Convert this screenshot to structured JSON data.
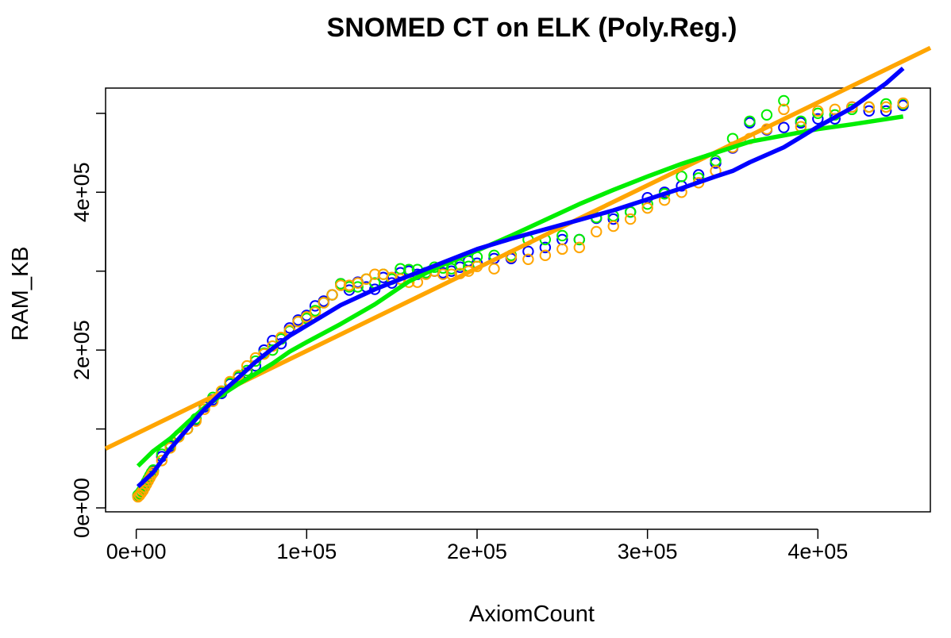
{
  "chart_data": {
    "type": "scatter",
    "title": "SNOMED CT on ELK (Poly.Reg.)",
    "xlabel": "AxiomCount",
    "ylabel": "RAM_KB",
    "xlim": [
      -18000,
      466000
    ],
    "ylim": [
      -5000,
      532000
    ],
    "xticks": [
      0,
      100000,
      200000,
      300000,
      400000
    ],
    "xtick_labels": [
      "0e+00",
      "1e+05",
      "2e+05",
      "3e+05",
      "4e+05"
    ],
    "yticks": [
      0,
      100000,
      200000,
      300000,
      400000,
      500000
    ],
    "ytick_labels": [
      "0e+00",
      "",
      "2e+05",
      "",
      "4e+05",
      ""
    ],
    "grid": false,
    "legend": "none",
    "point_series": [
      {
        "color": "#0000ff",
        "points": [
          [
            1000,
            15000
          ],
          [
            2000,
            17000
          ],
          [
            3000,
            20000
          ],
          [
            4000,
            24000
          ],
          [
            5000,
            28000
          ],
          [
            6000,
            32000
          ],
          [
            7000,
            36000
          ],
          [
            8000,
            40000
          ],
          [
            9000,
            44000
          ],
          [
            10000,
            47000
          ],
          [
            15000,
            65000
          ],
          [
            20000,
            78000
          ],
          [
            25000,
            92000
          ],
          [
            30000,
            100000
          ],
          [
            35000,
            112000
          ],
          [
            40000,
            128000
          ],
          [
            45000,
            137000
          ],
          [
            50000,
            145000
          ],
          [
            55000,
            157000
          ],
          [
            60000,
            165000
          ],
          [
            65000,
            171000
          ],
          [
            70000,
            180000
          ],
          [
            75000,
            200000
          ],
          [
            80000,
            212000
          ],
          [
            85000,
            208000
          ],
          [
            90000,
            228000
          ],
          [
            95000,
            238000
          ],
          [
            100000,
            244000
          ],
          [
            105000,
            256000
          ],
          [
            110000,
            262000
          ],
          [
            115000,
            270000
          ],
          [
            120000,
            284000
          ],
          [
            125000,
            276000
          ],
          [
            130000,
            286000
          ],
          [
            135000,
            280000
          ],
          [
            140000,
            277000
          ],
          [
            145000,
            292000
          ],
          [
            150000,
            285000
          ],
          [
            155000,
            298000
          ],
          [
            160000,
            300000
          ],
          [
            165000,
            296000
          ],
          [
            170000,
            298000
          ],
          [
            175000,
            300000
          ],
          [
            180000,
            298000
          ],
          [
            185000,
            300000
          ],
          [
            190000,
            305000
          ],
          [
            195000,
            313000
          ],
          [
            200000,
            310000
          ],
          [
            210000,
            316000
          ],
          [
            220000,
            316000
          ],
          [
            230000,
            325000
          ],
          [
            240000,
            330000
          ],
          [
            250000,
            340000
          ],
          [
            260000,
            340000
          ],
          [
            270000,
            367000
          ],
          [
            280000,
            366000
          ],
          [
            290000,
            375000
          ],
          [
            300000,
            393000
          ],
          [
            310000,
            400000
          ],
          [
            320000,
            408000
          ],
          [
            330000,
            422000
          ],
          [
            340000,
            437000
          ],
          [
            350000,
            456000
          ],
          [
            360000,
            488000
          ],
          [
            370000,
            479000
          ],
          [
            380000,
            482000
          ],
          [
            390000,
            488000
          ],
          [
            400000,
            493000
          ],
          [
            410000,
            493000
          ],
          [
            420000,
            508000
          ],
          [
            430000,
            503000
          ],
          [
            440000,
            503000
          ],
          [
            450000,
            510000
          ]
        ]
      },
      {
        "color": "#00ee00",
        "points": [
          [
            1000,
            16000
          ],
          [
            2000,
            18000
          ],
          [
            3000,
            21000
          ],
          [
            4000,
            25000
          ],
          [
            5000,
            29000
          ],
          [
            6000,
            33000
          ],
          [
            7000,
            37000
          ],
          [
            8000,
            41000
          ],
          [
            9000,
            45000
          ],
          [
            10000,
            48000
          ],
          [
            15000,
            68000
          ],
          [
            20000,
            80000
          ],
          [
            25000,
            92000
          ],
          [
            30000,
            100000
          ],
          [
            35000,
            113000
          ],
          [
            40000,
            130000
          ],
          [
            45000,
            140000
          ],
          [
            50000,
            147000
          ],
          [
            55000,
            158000
          ],
          [
            60000,
            166000
          ],
          [
            65000,
            174000
          ],
          [
            70000,
            186000
          ],
          [
            75000,
            196000
          ],
          [
            80000,
            200000
          ],
          [
            85000,
            214000
          ],
          [
            90000,
            224000
          ],
          [
            95000,
            236000
          ],
          [
            100000,
            240000
          ],
          [
            105000,
            250000
          ],
          [
            110000,
            260000
          ],
          [
            115000,
            270000
          ],
          [
            120000,
            284000
          ],
          [
            125000,
            280000
          ],
          [
            130000,
            280000
          ],
          [
            135000,
            290000
          ],
          [
            140000,
            285000
          ],
          [
            145000,
            296000
          ],
          [
            150000,
            290000
          ],
          [
            155000,
            303000
          ],
          [
            160000,
            302000
          ],
          [
            165000,
            302000
          ],
          [
            170000,
            298000
          ],
          [
            175000,
            305000
          ],
          [
            180000,
            304000
          ],
          [
            185000,
            303000
          ],
          [
            190000,
            308000
          ],
          [
            195000,
            306000
          ],
          [
            200000,
            318000
          ],
          [
            210000,
            320000
          ],
          [
            220000,
            320000
          ],
          [
            230000,
            340000
          ],
          [
            240000,
            340000
          ],
          [
            250000,
            345000
          ],
          [
            260000,
            340000
          ],
          [
            270000,
            368000
          ],
          [
            280000,
            370000
          ],
          [
            290000,
            375000
          ],
          [
            300000,
            385000
          ],
          [
            310000,
            398000
          ],
          [
            320000,
            420000
          ],
          [
            330000,
            418000
          ],
          [
            340000,
            440000
          ],
          [
            350000,
            468000
          ],
          [
            360000,
            490000
          ],
          [
            370000,
            498000
          ],
          [
            380000,
            516000
          ],
          [
            390000,
            490000
          ],
          [
            400000,
            500000
          ],
          [
            410000,
            498000
          ],
          [
            420000,
            505000
          ],
          [
            430000,
            508000
          ],
          [
            440000,
            512000
          ],
          [
            450000,
            512000
          ]
        ]
      },
      {
        "color": "#ffa500",
        "points": [
          [
            1000,
            14000
          ],
          [
            2000,
            16000
          ],
          [
            3000,
            19000
          ],
          [
            4000,
            22000
          ],
          [
            5000,
            26000
          ],
          [
            6000,
            30000
          ],
          [
            7000,
            34000
          ],
          [
            8000,
            38000
          ],
          [
            9000,
            42000
          ],
          [
            10000,
            45000
          ],
          [
            15000,
            60000
          ],
          [
            20000,
            76000
          ],
          [
            25000,
            90000
          ],
          [
            30000,
            100000
          ],
          [
            35000,
            110000
          ],
          [
            40000,
            125000
          ],
          [
            45000,
            135000
          ],
          [
            50000,
            148000
          ],
          [
            55000,
            160000
          ],
          [
            60000,
            168000
          ],
          [
            65000,
            180000
          ],
          [
            70000,
            190000
          ],
          [
            75000,
            195000
          ],
          [
            80000,
            205000
          ],
          [
            85000,
            216000
          ],
          [
            90000,
            225000
          ],
          [
            95000,
            236000
          ],
          [
            100000,
            242000
          ],
          [
            105000,
            248000
          ],
          [
            110000,
            260000
          ],
          [
            115000,
            270000
          ],
          [
            120000,
            282000
          ],
          [
            125000,
            282000
          ],
          [
            130000,
            285000
          ],
          [
            135000,
            290000
          ],
          [
            140000,
            296000
          ],
          [
            145000,
            296000
          ],
          [
            150000,
            292000
          ],
          [
            155000,
            290000
          ],
          [
            160000,
            286000
          ],
          [
            165000,
            286000
          ],
          [
            170000,
            296000
          ],
          [
            175000,
            300000
          ],
          [
            180000,
            296000
          ],
          [
            185000,
            296000
          ],
          [
            190000,
            297000
          ],
          [
            195000,
            300000
          ],
          [
            200000,
            306000
          ],
          [
            210000,
            303000
          ],
          [
            220000,
            318000
          ],
          [
            230000,
            315000
          ],
          [
            240000,
            320000
          ],
          [
            250000,
            328000
          ],
          [
            260000,
            330000
          ],
          [
            270000,
            350000
          ],
          [
            280000,
            357000
          ],
          [
            290000,
            366000
          ],
          [
            300000,
            380000
          ],
          [
            310000,
            390000
          ],
          [
            320000,
            400000
          ],
          [
            330000,
            412000
          ],
          [
            340000,
            427000
          ],
          [
            350000,
            457000
          ],
          [
            360000,
            468000
          ],
          [
            370000,
            480000
          ],
          [
            380000,
            505000
          ],
          [
            390000,
            483000
          ],
          [
            400000,
            503000
          ],
          [
            410000,
            505000
          ],
          [
            420000,
            508000
          ],
          [
            430000,
            508000
          ],
          [
            440000,
            508000
          ],
          [
            450000,
            513000
          ]
        ]
      }
    ],
    "line_series": [
      {
        "color": "#ffa500",
        "points": [
          [
            -18000,
            75000
          ],
          [
            466000,
            583000
          ]
        ]
      },
      {
        "color": "#00ee00",
        "points": [
          [
            1000,
            53000
          ],
          [
            10000,
            72000
          ],
          [
            20000,
            88000
          ],
          [
            30000,
            108000
          ],
          [
            40000,
            127000
          ],
          [
            50000,
            143000
          ],
          [
            60000,
            157000
          ],
          [
            70000,
            170000
          ],
          [
            80000,
            183000
          ],
          [
            90000,
            198000
          ],
          [
            100000,
            210000
          ],
          [
            120000,
            233000
          ],
          [
            140000,
            258000
          ],
          [
            160000,
            287000
          ],
          [
            180000,
            308000
          ],
          [
            200000,
            326000
          ],
          [
            220000,
            345000
          ],
          [
            240000,
            365000
          ],
          [
            260000,
            385000
          ],
          [
            280000,
            403000
          ],
          [
            300000,
            420000
          ],
          [
            320000,
            436000
          ],
          [
            340000,
            450000
          ],
          [
            360000,
            464000
          ],
          [
            380000,
            472000
          ],
          [
            400000,
            480000
          ],
          [
            420000,
            486000
          ],
          [
            450000,
            496000
          ]
        ]
      },
      {
        "color": "#0000ff",
        "points": [
          [
            1000,
            27000
          ],
          [
            10000,
            45000
          ],
          [
            20000,
            75000
          ],
          [
            30000,
            100000
          ],
          [
            40000,
            125000
          ],
          [
            50000,
            146000
          ],
          [
            60000,
            165000
          ],
          [
            70000,
            185000
          ],
          [
            80000,
            202000
          ],
          [
            90000,
            218000
          ],
          [
            100000,
            231000
          ],
          [
            120000,
            257000
          ],
          [
            140000,
            277000
          ],
          [
            160000,
            294000
          ],
          [
            180000,
            311000
          ],
          [
            200000,
            328000
          ],
          [
            220000,
            341000
          ],
          [
            240000,
            353000
          ],
          [
            260000,
            365000
          ],
          [
            280000,
            377000
          ],
          [
            300000,
            391000
          ],
          [
            320000,
            405000
          ],
          [
            340000,
            420000
          ],
          [
            350000,
            427000
          ],
          [
            360000,
            438000
          ],
          [
            380000,
            457000
          ],
          [
            400000,
            483000
          ],
          [
            420000,
            507000
          ],
          [
            440000,
            538000
          ],
          [
            450000,
            557000
          ]
        ]
      }
    ]
  }
}
